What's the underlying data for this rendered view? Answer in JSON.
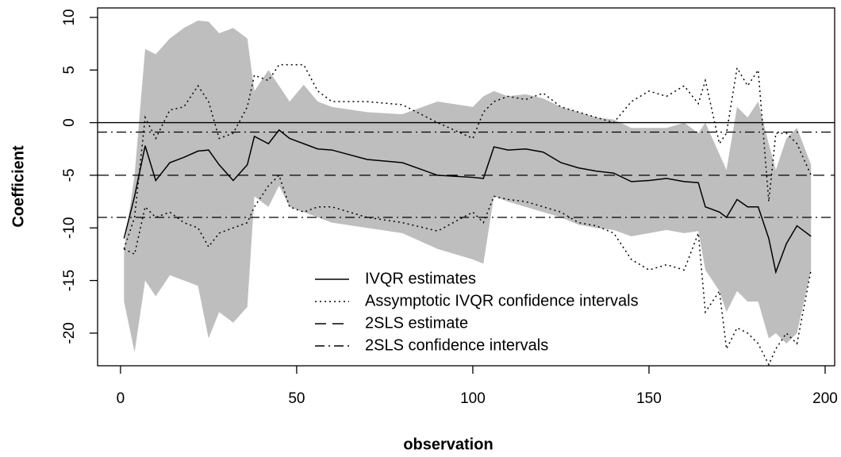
{
  "chart_data": {
    "type": "line",
    "xlabel": "observation",
    "ylabel": "Coefficient",
    "x": [
      1,
      4,
      7,
      10,
      14,
      18,
      22,
      25,
      28,
      32,
      36,
      38,
      42,
      45,
      48,
      52,
      56,
      60,
      70,
      80,
      90,
      100,
      103,
      106,
      110,
      115,
      120,
      125,
      130,
      135,
      140,
      145,
      150,
      155,
      160,
      164,
      166,
      170,
      172,
      175,
      178,
      181,
      184,
      186,
      189,
      192,
      196
    ],
    "band": {
      "color": "#bebebe",
      "upper": [
        -12,
        -5,
        7,
        6.5,
        8,
        9,
        9.7,
        9.6,
        8.5,
        9,
        8,
        3,
        5,
        3.5,
        2,
        3.6,
        2,
        1.5,
        1,
        0.8,
        2,
        1.5,
        2.5,
        3,
        2.5,
        2.7,
        2.3,
        1.5,
        1,
        0.5,
        0.3,
        -0.5,
        -0.5,
        -0.5,
        0,
        -1,
        0,
        -3,
        -4.5,
        1.5,
        0.5,
        2,
        -2,
        -4.5,
        -1.5,
        -0.5,
        -4
      ],
      "lower": [
        -17,
        -21.8,
        -15,
        -16.5,
        -14.5,
        -15,
        -15.5,
        -20.5,
        -18,
        -19,
        -17.5,
        -7,
        -8,
        -6,
        -8,
        -8.5,
        -9,
        -9.5,
        -10,
        -10.5,
        -12,
        -13,
        -13.4,
        -7,
        -7.5,
        -8,
        -8.5,
        -9,
        -9.7,
        -10,
        -10.2,
        -10.8,
        -10.5,
        -10.2,
        -10.5,
        -10.3,
        -14,
        -16,
        -18,
        -16,
        -17,
        -17,
        -20.5,
        -20,
        -21,
        -20,
        -14
      ]
    },
    "series": [
      {
        "name": "IVQR estimates",
        "color": "#000000",
        "style": "solid",
        "values": [
          -11,
          -7,
          -2.2,
          -5.5,
          -3.8,
          -3.3,
          -2.7,
          -2.6,
          -4,
          -5.5,
          -4,
          -1.3,
          -2,
          -0.7,
          -1.5,
          -2,
          -2.5,
          -2.6,
          -3.5,
          -3.8,
          -5,
          -5.2,
          -5.3,
          -2.3,
          -2.6,
          -2.5,
          -2.8,
          -3.8,
          -4.3,
          -4.6,
          -4.8,
          -5.6,
          -5.5,
          -5.3,
          -5.6,
          -5.7,
          -8,
          -8.5,
          -9,
          -7.3,
          -8,
          -8,
          -11,
          -14.2,
          -11.5,
          -9.8,
          -10.8
        ]
      },
      {
        "name": "Assymptotic IVQR confidence intervals",
        "color": "#000000",
        "style": "dotted",
        "upper": [
          -12,
          -9,
          0.5,
          -1.5,
          1.2,
          1.5,
          3.5,
          2,
          -1.5,
          -1,
          1.5,
          4.5,
          4,
          5.5,
          5.5,
          5.5,
          3,
          2,
          2,
          1.7,
          0,
          -1.5,
          1,
          2,
          2.5,
          2.2,
          2.8,
          1.5,
          1,
          0.5,
          0,
          2,
          3,
          2.5,
          3.5,
          1.8,
          4,
          -2,
          -1,
          5.2,
          3.5,
          5,
          -7.5,
          -1,
          -1,
          -2,
          -5
        ],
        "lower": [
          -12,
          -12.5,
          -8,
          -9,
          -8.5,
          -9.5,
          -10,
          -11.8,
          -10.5,
          -10,
          -9.5,
          -8,
          -6,
          -5,
          -8,
          -8.5,
          -8,
          -8,
          -9,
          -9.5,
          -10.3,
          -8.5,
          -9.5,
          -7,
          -7.3,
          -7.5,
          -8,
          -8.5,
          -9.5,
          -9.8,
          -10.5,
          -13,
          -14,
          -13.5,
          -14,
          -10.5,
          -18,
          -16,
          -21.5,
          -19.5,
          -20,
          -21,
          -23,
          -21.5,
          -20,
          -21,
          -14
        ]
      }
    ],
    "hlines": [
      {
        "name": "2SLS estimate",
        "color": "#000000",
        "style": "dashed",
        "values": [
          -5
        ]
      },
      {
        "name": "2SLS confidence intervals",
        "color": "#000000",
        "style": "dotdash",
        "values": [
          -0.9,
          -9
        ]
      }
    ],
    "zero_line": 0,
    "xlim": [
      -6.5,
      202.7
    ],
    "ylim": [
      -23.1,
      10.9
    ],
    "xticks": [
      0,
      50,
      100,
      150,
      200
    ],
    "yticks": [
      -20,
      -15,
      -10,
      -5,
      0,
      5,
      10
    ]
  }
}
